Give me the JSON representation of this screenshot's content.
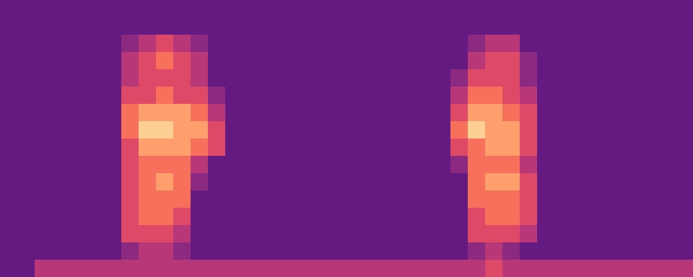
{
  "chart_data": {
    "type": "heatmap",
    "tick_labels": false,
    "color_range": [
      0,
      10
    ],
    "cells": [
      [
        3,
        3,
        3,
        3,
        3,
        3,
        3,
        3,
        3,
        3,
        3,
        3,
        3,
        3,
        3,
        3,
        3,
        3,
        3,
        3,
        3,
        3,
        3,
        3,
        3,
        3,
        3,
        3,
        3,
        3,
        3,
        3,
        3,
        3,
        3,
        3,
        3,
        3,
        3,
        3
      ],
      [
        3,
        3,
        3,
        3,
        3,
        3,
        3,
        3,
        3,
        3,
        3,
        3,
        3,
        3,
        3,
        3,
        3,
        3,
        3,
        3,
        3,
        3,
        3,
        3,
        3,
        3,
        3,
        3,
        3,
        3,
        3,
        3,
        3,
        3,
        3,
        3,
        3,
        3,
        3,
        3
      ],
      [
        3,
        3,
        3,
        3,
        3,
        3,
        3,
        4,
        5,
        6,
        5,
        4,
        3,
        3,
        3,
        3,
        3,
        3,
        3,
        3,
        3,
        3,
        3,
        3,
        3,
        3,
        3,
        4,
        5,
        5,
        3,
        3,
        3,
        3,
        3,
        3,
        3,
        3,
        3,
        3
      ],
      [
        3,
        3,
        3,
        3,
        3,
        3,
        3,
        5,
        6,
        7,
        6,
        5,
        3,
        3,
        3,
        3,
        3,
        3,
        3,
        3,
        3,
        3,
        3,
        3,
        3,
        3,
        3,
        5,
        6,
        6,
        4,
        3,
        3,
        3,
        3,
        3,
        3,
        3,
        3,
        3
      ],
      [
        3,
        3,
        3,
        3,
        3,
        3,
        3,
        5,
        6,
        6,
        6,
        5,
        3,
        3,
        3,
        3,
        3,
        3,
        3,
        3,
        3,
        3,
        3,
        3,
        3,
        3,
        4,
        6,
        6,
        6,
        4,
        3,
        3,
        3,
        3,
        3,
        3,
        3,
        3,
        3
      ],
      [
        3,
        3,
        3,
        3,
        3,
        3,
        3,
        6,
        6,
        7,
        6,
        6,
        4,
        3,
        3,
        3,
        3,
        3,
        3,
        3,
        3,
        3,
        3,
        3,
        3,
        3,
        5,
        7,
        7,
        6,
        5,
        3,
        3,
        3,
        3,
        3,
        3,
        3,
        3,
        3
      ],
      [
        3,
        3,
        3,
        3,
        3,
        3,
        3,
        7,
        8,
        8,
        8,
        7,
        5,
        3,
        3,
        3,
        3,
        3,
        3,
        3,
        3,
        3,
        3,
        3,
        3,
        3,
        6,
        8,
        8,
        7,
        6,
        3,
        3,
        3,
        3,
        3,
        3,
        3,
        3,
        3
      ],
      [
        3,
        3,
        3,
        3,
        3,
        3,
        3,
        7,
        9,
        9,
        8,
        8,
        6,
        3,
        3,
        3,
        3,
        3,
        3,
        3,
        3,
        3,
        3,
        3,
        3,
        3,
        7,
        9,
        8,
        8,
        6,
        3,
        3,
        3,
        3,
        3,
        3,
        3,
        3,
        3
      ],
      [
        3,
        3,
        3,
        3,
        3,
        3,
        3,
        6,
        8,
        8,
        8,
        7,
        6,
        3,
        3,
        3,
        3,
        3,
        3,
        3,
        3,
        3,
        3,
        3,
        3,
        3,
        6,
        7,
        8,
        8,
        6,
        3,
        3,
        3,
        3,
        3,
        3,
        3,
        3,
        3
      ],
      [
        3,
        3,
        3,
        3,
        3,
        3,
        3,
        6,
        7,
        7,
        7,
        5,
        3,
        3,
        3,
        3,
        3,
        3,
        3,
        3,
        3,
        3,
        3,
        3,
        3,
        3,
        4,
        7,
        7,
        7,
        5,
        3,
        3,
        3,
        3,
        3,
        3,
        3,
        3,
        3
      ],
      [
        3,
        3,
        3,
        3,
        3,
        3,
        3,
        6,
        7,
        8,
        7,
        4,
        3,
        3,
        3,
        3,
        3,
        3,
        3,
        3,
        3,
        3,
        3,
        3,
        3,
        3,
        3,
        7,
        8,
        8,
        6,
        3,
        3,
        3,
        3,
        3,
        3,
        3,
        3,
        3
      ],
      [
        3,
        3,
        3,
        3,
        3,
        3,
        3,
        6,
        7,
        7,
        7,
        3,
        3,
        3,
        3,
        3,
        3,
        3,
        3,
        3,
        3,
        3,
        3,
        3,
        3,
        3,
        3,
        7,
        7,
        7,
        6,
        3,
        3,
        3,
        3,
        3,
        3,
        3,
        3,
        3
      ],
      [
        3,
        3,
        3,
        3,
        3,
        3,
        3,
        6,
        7,
        7,
        6,
        3,
        3,
        3,
        3,
        3,
        3,
        3,
        3,
        3,
        3,
        3,
        3,
        3,
        3,
        3,
        3,
        6,
        7,
        7,
        6,
        3,
        3,
        3,
        3,
        3,
        3,
        3,
        3,
        3
      ],
      [
        3,
        3,
        3,
        3,
        3,
        3,
        3,
        6,
        6,
        6,
        5,
        3,
        3,
        3,
        3,
        3,
        3,
        3,
        3,
        3,
        3,
        3,
        3,
        3,
        3,
        3,
        3,
        6,
        6,
        6,
        5,
        3,
        3,
        3,
        3,
        3,
        3,
        3,
        3,
        3
      ],
      [
        3,
        3,
        3,
        3,
        3,
        3,
        3,
        4,
        5,
        5,
        4,
        3,
        3,
        3,
        3,
        3,
        3,
        3,
        3,
        3,
        3,
        3,
        3,
        3,
        3,
        3,
        3,
        4,
        5,
        4,
        3,
        3,
        3,
        3,
        3,
        3,
        3,
        3,
        3,
        3
      ],
      [
        3,
        3,
        5,
        5,
        5,
        5,
        5,
        5,
        5,
        5,
        5,
        5,
        5,
        5,
        5,
        5,
        5,
        5,
        5,
        5,
        5,
        5,
        5,
        5,
        5,
        5,
        5,
        5,
        6,
        5,
        5,
        5,
        5,
        5,
        5,
        5,
        5,
        5,
        5,
        5
      ]
    ]
  }
}
